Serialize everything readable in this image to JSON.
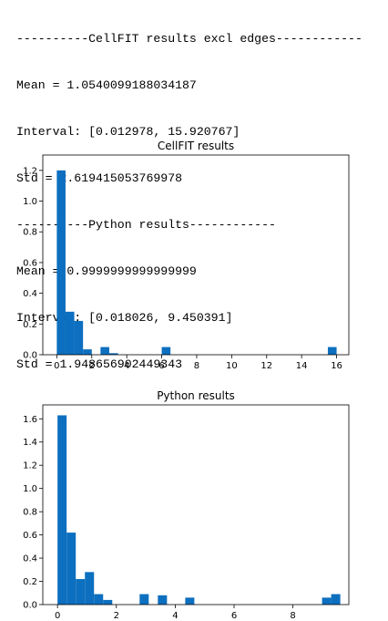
{
  "console": {
    "lines": [
      "----------CellFIT results excl edges------------",
      "Mean = 1.0540099188034187",
      "Interval: [0.012978, 15.920767]",
      "Std = 2.619415053769978",
      "----------Python results------------",
      "Mean = 0.9999999999999999",
      "Interval: [0.018026, 9.450391]",
      "Std = 1.948656902449343"
    ]
  },
  "bar_color": "#0d6fbf",
  "chart_data": [
    {
      "type": "bar",
      "title": "CellFIT results",
      "xlim": [
        -0.8,
        16.7
      ],
      "ylim": [
        0,
        1.3
      ],
      "xticks": [
        0,
        2,
        4,
        6,
        8,
        10,
        12,
        14,
        16
      ],
      "xtick_labels": [
        "0",
        "2",
        "4",
        "6",
        "8",
        "10",
        "12",
        "14",
        "16"
      ],
      "yticks": [
        0,
        0.2,
        0.4,
        0.6,
        0.8,
        1.0,
        1.2
      ],
      "ytick_labels": [
        "0.0",
        "0.2",
        "0.4",
        "0.6",
        "0.8",
        "1.0",
        "1.2"
      ],
      "bin_width": 0.5,
      "bin_starts": [
        0.0,
        0.5,
        1.0,
        1.5,
        2.0,
        2.5,
        3.0,
        3.5,
        4.0,
        4.5,
        5.0,
        5.5,
        6.0,
        6.5,
        7.0,
        7.5,
        8.0,
        8.5,
        9.0,
        9.5,
        10.0,
        10.5,
        11.0,
        11.5,
        12.0,
        12.5,
        13.0,
        13.5,
        14.0,
        14.5,
        15.0,
        15.5
      ],
      "values": [
        1.2,
        0.28,
        0.22,
        0.035,
        0,
        0.05,
        0.01,
        0,
        0,
        0,
        0,
        0,
        0.05,
        0,
        0,
        0,
        0,
        0,
        0,
        0,
        0,
        0,
        0,
        0,
        0,
        0,
        0,
        0,
        0,
        0,
        0,
        0.05
      ]
    },
    {
      "type": "bar",
      "title": "Python results",
      "xlim": [
        -0.5,
        9.9
      ],
      "ylim": [
        0,
        1.72
      ],
      "xticks": [
        0,
        2,
        4,
        6,
        8
      ],
      "xtick_labels": [
        "0",
        "2",
        "4",
        "6",
        "8"
      ],
      "yticks": [
        0,
        0.2,
        0.4,
        0.6,
        0.8,
        1.0,
        1.2,
        1.4,
        1.6
      ],
      "ytick_labels": [
        "0.0",
        "0.2",
        "0.4",
        "0.6",
        "0.8",
        "1.0",
        "1.2",
        "1.4",
        "1.6"
      ],
      "bin_width": 0.31,
      "bin_starts": [
        0.0,
        0.31,
        0.62,
        0.93,
        1.24,
        1.55,
        1.86,
        2.17,
        2.48,
        2.79,
        3.1,
        3.41,
        3.72,
        4.03,
        4.34,
        4.65,
        4.96,
        5.27,
        5.58,
        5.89,
        6.2,
        6.51,
        6.82,
        7.13,
        7.44,
        7.75,
        8.06,
        8.37,
        8.68,
        8.99,
        9.3
      ],
      "values": [
        1.63,
        0.62,
        0.22,
        0.28,
        0.09,
        0.04,
        0,
        0,
        0,
        0.09,
        0,
        0.08,
        0,
        0,
        0.06,
        0,
        0,
        0,
        0,
        0,
        0,
        0,
        0,
        0,
        0,
        0,
        0,
        0,
        0,
        0.06,
        0.09
      ]
    }
  ]
}
